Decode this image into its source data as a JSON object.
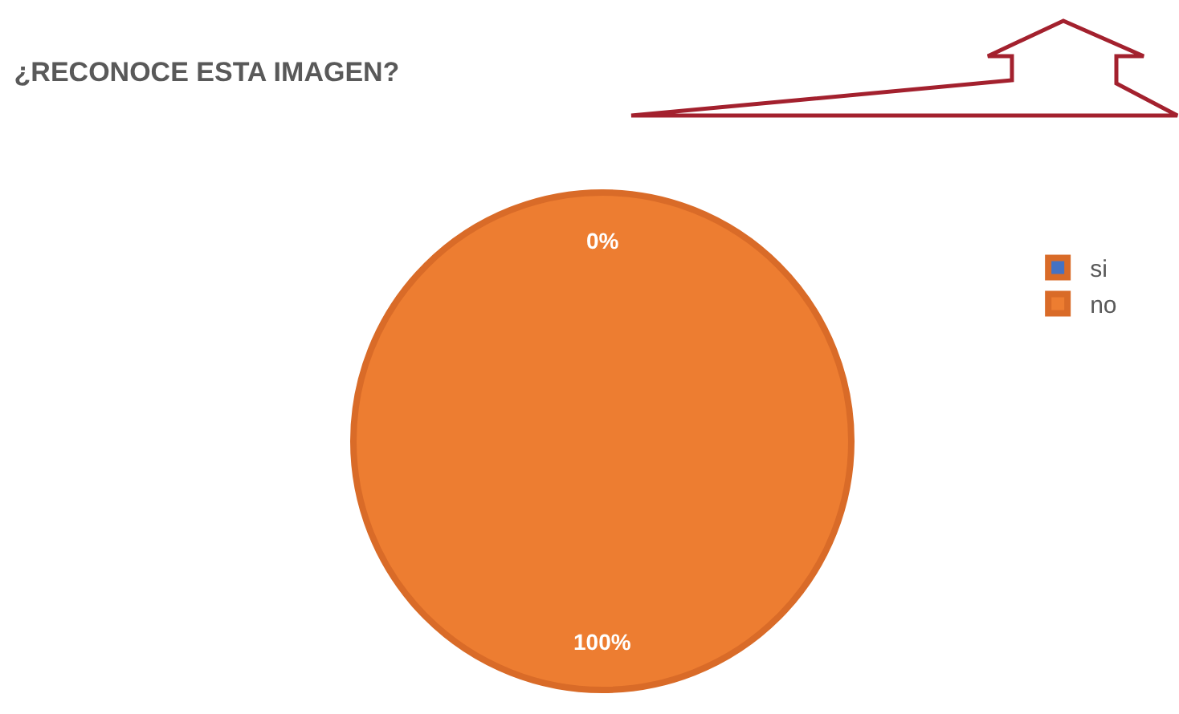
{
  "chart_data": {
    "type": "pie",
    "title": "¿RECONOCE ESTA IMAGEN?",
    "categories": [
      "si",
      "no"
    ],
    "values": [
      0,
      100
    ],
    "colors": [
      "#4472c4",
      "#ed7d31"
    ],
    "value_labels": [
      "0%",
      "100%"
    ],
    "legend": "right"
  }
}
